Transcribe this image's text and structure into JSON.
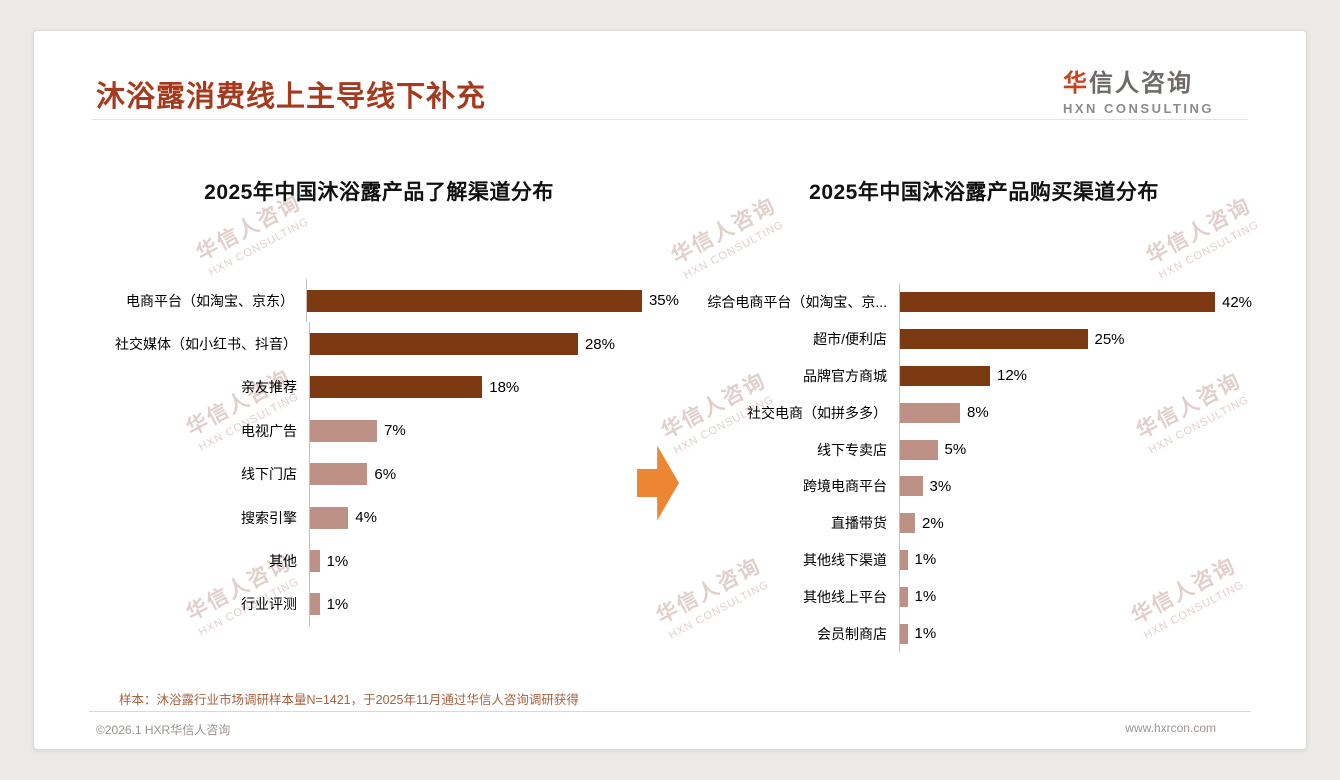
{
  "header": {
    "title": "沐浴露消费线上主导线下补充",
    "logo_cn": "华信人咨询",
    "logo_en": "HXN CONSULTING"
  },
  "chart_data": [
    {
      "type": "bar",
      "orientation": "horizontal",
      "title": "2025年中国沐浴露产品了解渠道分布",
      "categories": [
        "电商平台（如淘宝、京东）",
        "社交媒体（如小红书、抖音）",
        "亲友推荐",
        "电视广告",
        "线下门店",
        "搜索引擎",
        "其他",
        "行业评测"
      ],
      "values": [
        35,
        28,
        18,
        7,
        6,
        4,
        1,
        1
      ],
      "unit": "%",
      "xlim": [
        0,
        42
      ],
      "grid": false,
      "legend": "none"
    },
    {
      "type": "bar",
      "orientation": "horizontal",
      "title": "2025年中国沐浴露产品购买渠道分布",
      "categories": [
        "综合电商平台（如淘宝、京...",
        "超市/便利店",
        "品牌官方商城",
        "社交电商（如拼多多）",
        "线下专卖店",
        "跨境电商平台",
        "直播带货",
        "其他线下渠道",
        "其他线上平台",
        "会员制商店"
      ],
      "values": [
        42,
        25,
        12,
        8,
        5,
        3,
        2,
        1,
        1,
        1
      ],
      "unit": "%",
      "xlim": [
        0,
        45
      ],
      "grid": false,
      "legend": "none"
    }
  ],
  "colors": {
    "title": "#A63A1E",
    "bar_dark": "#7D3A12",
    "bar_light": "#BD9186",
    "arrow": "#EC8633",
    "dark_threshold": 10
  },
  "watermark": {
    "cn": "华信人咨询",
    "en": "HXN CONSULTING"
  },
  "footnote": "样本：沐浴露行业市场调研样本量N=1421，于2025年11月通过华信人咨询调研获得",
  "footer": {
    "left": "©2026.1 HXR华信人咨询",
    "right": "www.hxrcon.com"
  }
}
